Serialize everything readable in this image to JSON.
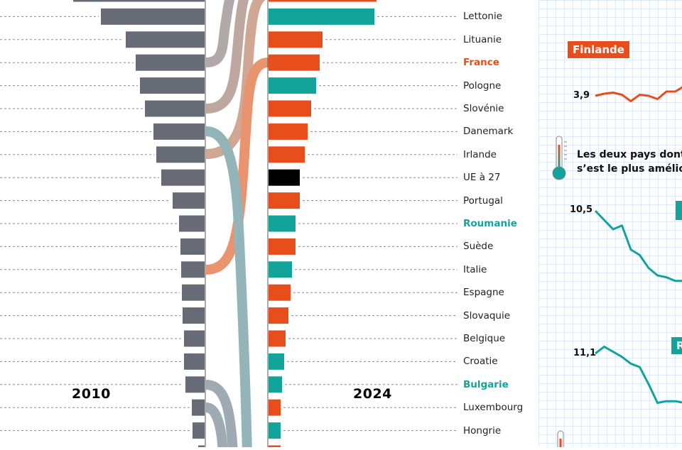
{
  "chart_data": {
    "type": "bar",
    "title": "",
    "series_left_label": "2010",
    "series_right_label": "2024",
    "categories": [
      "",
      "Lettonie",
      "Lituanie",
      "France",
      "Pologne",
      "Slovénie",
      "Danemark",
      "Irlande",
      "UE à 27",
      "Portugal",
      "Roumanie",
      "Suède",
      "Italie",
      "Espagne",
      "Slovaquie",
      "Belgique",
      "Croatie",
      "Bulgarie",
      "Luxembourg",
      "Hongrie",
      ""
    ],
    "highlight": {
      "France": "#e84e1b",
      "Roumanie": "#12a39a",
      "Bulgarie": "#12a39a"
    },
    "values_2010": [
      185,
      146,
      111,
      97,
      91,
      84,
      72,
      68,
      61,
      45,
      36,
      34,
      33,
      32,
      31,
      29,
      29,
      27,
      18,
      17,
      9
    ],
    "values_2024": [
      152,
      149,
      76,
      72,
      67,
      60,
      55,
      51,
      44,
      44,
      38,
      38,
      33,
      31,
      28,
      24,
      22,
      19,
      17,
      17,
      17
    ],
    "colors_2024": [
      "orange",
      "teal",
      "orange",
      "orange",
      "teal",
      "orange",
      "orange",
      "orange",
      "black",
      "orange",
      "teal",
      "orange",
      "teal",
      "orange",
      "orange",
      "orange",
      "teal",
      "teal",
      "orange",
      "teal",
      "orange"
    ],
    "palette": {
      "orange": "#e84e1b",
      "teal": "#12a39a",
      "black": "#000000",
      "gray": "#676b75"
    }
  },
  "side": {
    "finlande": {
      "label": "Finlande",
      "start_value": "3,9",
      "values": [
        3.9,
        4.0,
        4.05,
        3.95,
        3.65,
        3.95,
        3.9,
        3.75,
        4.1,
        4.1,
        4.35
      ]
    },
    "caption_line1": "Les deux pays dont",
    "caption_line2": "s’est le plus amélior",
    "country_a": {
      "start_value": "10,5",
      "values": [
        10.5,
        10.0,
        9.5,
        9.7,
        8.4,
        8.1,
        7.4,
        7.0,
        6.9,
        6.7,
        6.7
      ]
    },
    "country_b": {
      "tag": "R",
      "start_value": "11,1",
      "values": [
        11.1,
        11.5,
        11.2,
        10.9,
        10.5,
        10.3,
        9.3,
        8.2,
        8.3,
        8.3,
        8.2
      ]
    }
  }
}
